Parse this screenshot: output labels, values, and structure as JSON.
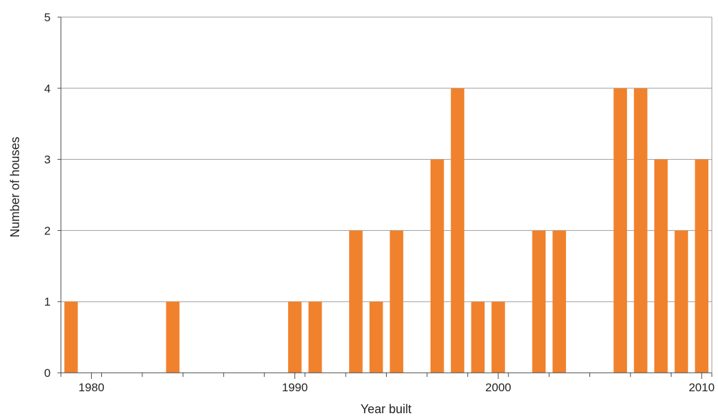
{
  "chart_data": {
    "type": "bar",
    "title": "",
    "xlabel": "Year built",
    "ylabel": "Number of houses",
    "x": [
      1979,
      1984,
      1990,
      1991,
      1993,
      1994,
      1995,
      1997,
      1998,
      1999,
      2000,
      2002,
      2003,
      2006,
      2007,
      2008,
      2009,
      2010
    ],
    "values": [
      1,
      1,
      1,
      1,
      2,
      1,
      2,
      3,
      4,
      1,
      1,
      2,
      2,
      4,
      4,
      3,
      2,
      3
    ],
    "xlim": [
      1978.5,
      2010.5
    ],
    "ylim": [
      0,
      5
    ],
    "x_ticks": [
      "1980",
      "1990",
      "2000",
      "2010"
    ],
    "y_ticks": [
      "0",
      "1",
      "2",
      "3",
      "4",
      "5"
    ],
    "grid": "horizontal",
    "legend": "none",
    "bar_color": "#F0822D",
    "grid_color": "#9A9A9A"
  }
}
